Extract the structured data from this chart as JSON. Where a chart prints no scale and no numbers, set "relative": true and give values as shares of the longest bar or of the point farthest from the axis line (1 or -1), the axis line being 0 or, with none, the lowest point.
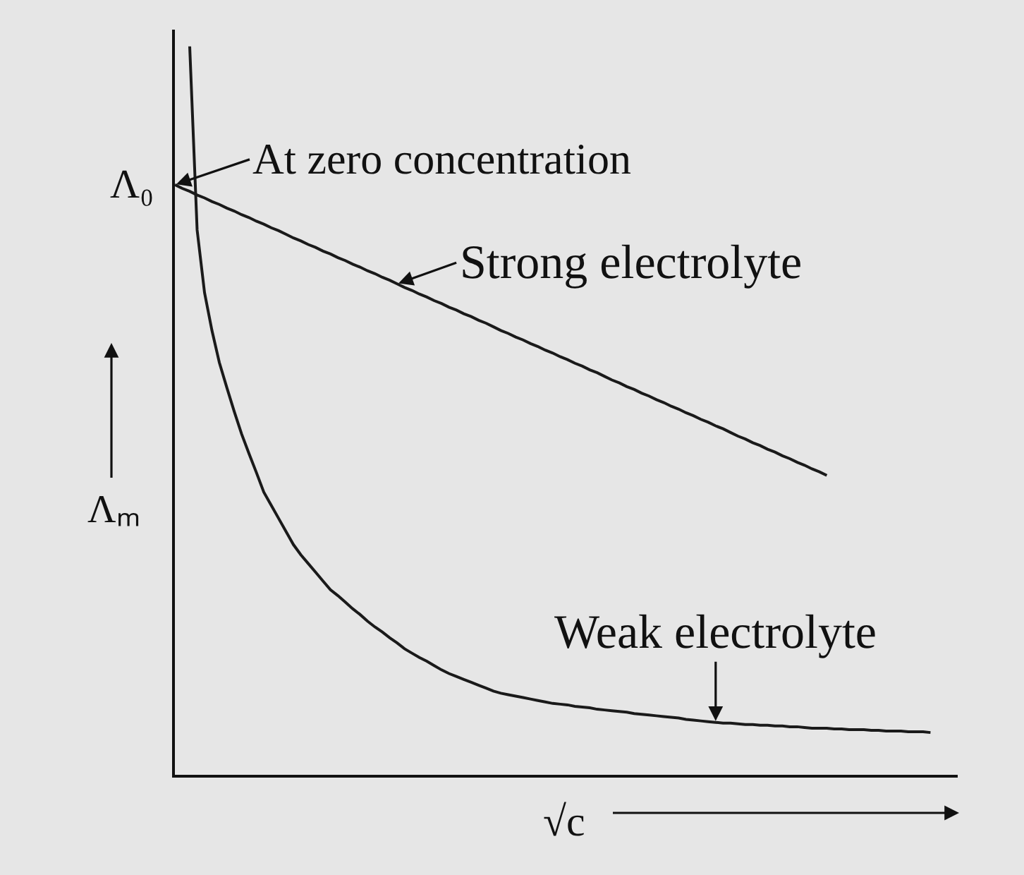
{
  "chart_data": {
    "type": "line",
    "relative": true,
    "categories": [
      null,
      null,
      null,
      null,
      null,
      null,
      null,
      null,
      null,
      null,
      null,
      null,
      null,
      null,
      null,
      null,
      null,
      null,
      null,
      null,
      null,
      null,
      null,
      null,
      null,
      null,
      null,
      null,
      null,
      null,
      null,
      null,
      null,
      null,
      null,
      null,
      null,
      null,
      null,
      null,
      null,
      null,
      null,
      null,
      null,
      null,
      null,
      null,
      null,
      null,
      null,
      null,
      null,
      null,
      null,
      null,
      null,
      null,
      null,
      null,
      null,
      null,
      null,
      null,
      null,
      null,
      null,
      null,
      null,
      null,
      null,
      null,
      null,
      null,
      null,
      null,
      null,
      null,
      null,
      null,
      null,
      null,
      null,
      null,
      null,
      null,
      null,
      null,
      null,
      null,
      null,
      null,
      null,
      null,
      null,
      null,
      null,
      null,
      null,
      null,
      null,
      null,
      null
    ],
    "series": [
      {
        "color": "#1a1a1a",
        "values": [
          0.81,
          0.805,
          0.801,
          0.796,
          0.792,
          0.787,
          0.783,
          0.778,
          0.774,
          0.769,
          0.765,
          0.76,
          0.756,
          0.751,
          0.747,
          0.742,
          0.737,
          0.733,
          0.728,
          0.724,
          0.719,
          0.715,
          0.71,
          0.706,
          0.701,
          0.697,
          0.692,
          0.688,
          0.683,
          0.679,
          0.674,
          0.669,
          0.665,
          0.66,
          0.656,
          0.651,
          0.647,
          0.642,
          0.638,
          0.633,
          0.629,
          0.624,
          0.62,
          0.615,
          0.61,
          0.606,
          0.601,
          0.597,
          0.592,
          0.588,
          0.583,
          0.579,
          0.574,
          0.57,
          0.565,
          0.561,
          0.556,
          0.552,
          0.547,
          0.542,
          0.538,
          0.533,
          0.529,
          0.524,
          0.52,
          0.515,
          0.511,
          0.506,
          0.502,
          0.497,
          0.493,
          0.488,
          0.484,
          0.479,
          0.475,
          0.47,
          0.465,
          0.461,
          0.456,
          0.452,
          0.447,
          0.443,
          0.438,
          0.434,
          0.429,
          0.425,
          0.42,
          0.416,
          0.411,
          null,
          null,
          null,
          null,
          null,
          null,
          null,
          null,
          null,
          null,
          null,
          null,
          null,
          null
        ]
      },
      {
        "color": "#1a1a1a",
        "values": [
          null,
          null,
          1.0,
          0.748,
          0.662,
          0.61,
          0.566,
          0.532,
          0.499,
          0.468,
          0.441,
          0.415,
          0.388,
          0.37,
          0.352,
          0.334,
          0.316,
          0.302,
          0.29,
          0.278,
          0.266,
          0.254,
          0.246,
          0.237,
          0.228,
          0.22,
          0.211,
          0.203,
          0.196,
          0.188,
          0.181,
          0.173,
          0.167,
          0.161,
          0.156,
          0.15,
          0.144,
          0.139,
          0.135,
          0.131,
          0.127,
          0.123,
          0.119,
          0.115,
          0.112,
          0.11,
          0.108,
          0.106,
          0.104,
          0.102,
          0.1,
          0.098,
          0.097,
          0.096,
          0.094,
          0.093,
          0.092,
          0.09,
          0.089,
          0.088,
          0.087,
          0.086,
          0.084,
          0.083,
          0.082,
          0.081,
          0.08,
          0.079,
          0.078,
          0.076,
          0.075,
          0.074,
          0.073,
          0.072,
          0.071,
          0.071,
          0.07,
          0.069,
          0.069,
          0.068,
          0.068,
          0.067,
          0.067,
          0.066,
          0.066,
          0.065,
          0.064,
          0.064,
          0.064,
          0.063,
          0.063,
          0.062,
          0.062,
          0.062,
          0.061,
          0.061,
          0.06,
          0.06,
          0.06,
          0.059,
          0.059,
          0.059,
          0.058
        ]
      }
    ],
    "xlabel": "√c",
    "ylabel": "Λₘ",
    "annotations": [
      "Λ₀",
      "At zero concentration",
      "Strong electrolyte",
      "Weak electrolyte"
    ]
  }
}
